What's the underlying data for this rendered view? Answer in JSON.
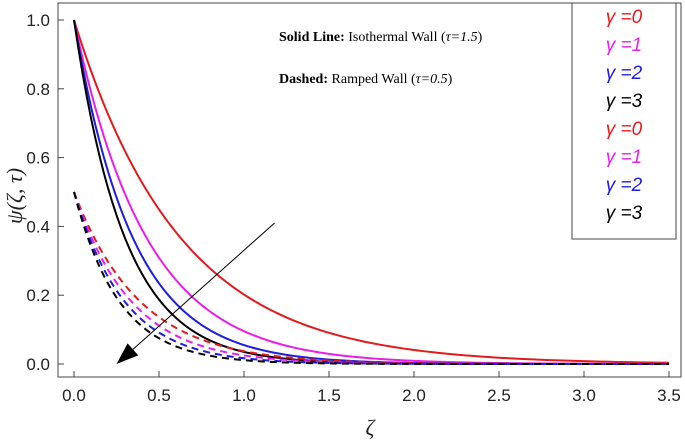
{
  "chart_data": {
    "type": "line",
    "xlabel": "ζ",
    "ylabel": "ψ(ζ, τ)",
    "xlim": [
      0,
      3.5
    ],
    "ylim": [
      0,
      1.0
    ],
    "x_ticks": [
      "0.0",
      "0.5",
      "1.0",
      "1.5",
      "2.0",
      "2.5",
      "3.0",
      "3.5"
    ],
    "x_tick_values": [
      0,
      0.5,
      1.0,
      1.5,
      2.0,
      2.5,
      3.0,
      3.5
    ],
    "y_ticks": [
      "0.0",
      "0.2",
      "0.4",
      "0.6",
      "0.8",
      "1.0"
    ],
    "y_tick_values": [
      0,
      0.2,
      0.4,
      0.6,
      0.8,
      1.0
    ],
    "annotations": {
      "solid_label": "Solid Line:",
      "solid_text": " Isothermal Wall (",
      "solid_param": "τ=1.5",
      "solid_close": ")",
      "dashed_label": "Dashed:",
      "dashed_text": " Ramped Wall (",
      "dashed_param": "τ=0.5",
      "dashed_close": ")"
    },
    "arrow": {
      "from": [
        1.18,
        0.41
      ],
      "to": [
        0.25,
        0.0
      ],
      "meaning": "increasing γ"
    },
    "legend": [
      {
        "label": "γ =0",
        "color": "#e31a1c"
      },
      {
        "label": "γ =1",
        "color": "#e81ee8"
      },
      {
        "label": "γ =2",
        "color": "#1c1ce3"
      },
      {
        "label": "γ =3",
        "color": "#000000"
      },
      {
        "label": "γ =0",
        "color": "#e31a1c"
      },
      {
        "label": "γ =1",
        "color": "#e81ee8"
      },
      {
        "label": "γ =2",
        "color": "#1c1ce3"
      },
      {
        "label": "γ =3",
        "color": "#000000"
      }
    ],
    "series": [
      {
        "name": "γ=0 Isothermal Wall (τ=1.5)",
        "style": "solid",
        "color": "#e31a1c",
        "start": 1.0,
        "decay": 1.6
      },
      {
        "name": "γ=1 Isothermal Wall (τ=1.5)",
        "style": "solid",
        "color": "#e81ee8",
        "start": 1.0,
        "decay": 2.35
      },
      {
        "name": "γ=2 Isothermal Wall (τ=1.5)",
        "style": "solid",
        "color": "#1c1ce3",
        "start": 1.0,
        "decay": 2.9
      },
      {
        "name": "γ=3 Isothermal Wall (τ=1.5)",
        "style": "solid",
        "color": "#000000",
        "start": 1.0,
        "decay": 3.35
      },
      {
        "name": "γ=0 Ramped Wall (τ=0.5)",
        "style": "dashed",
        "color": "#e31a1c",
        "start": 0.5,
        "decay": 2.6
      },
      {
        "name": "γ=1 Ramped Wall (τ=0.5)",
        "style": "dashed",
        "color": "#e81ee8",
        "start": 0.5,
        "decay": 3.0
      },
      {
        "name": "γ=2 Ramped Wall (τ=0.5)",
        "style": "dashed",
        "color": "#1c1ce3",
        "start": 0.5,
        "decay": 3.4
      },
      {
        "name": "γ=3 Ramped Wall (τ=0.5)",
        "style": "dashed",
        "color": "#000000",
        "start": 0.5,
        "decay": 3.8
      }
    ]
  }
}
